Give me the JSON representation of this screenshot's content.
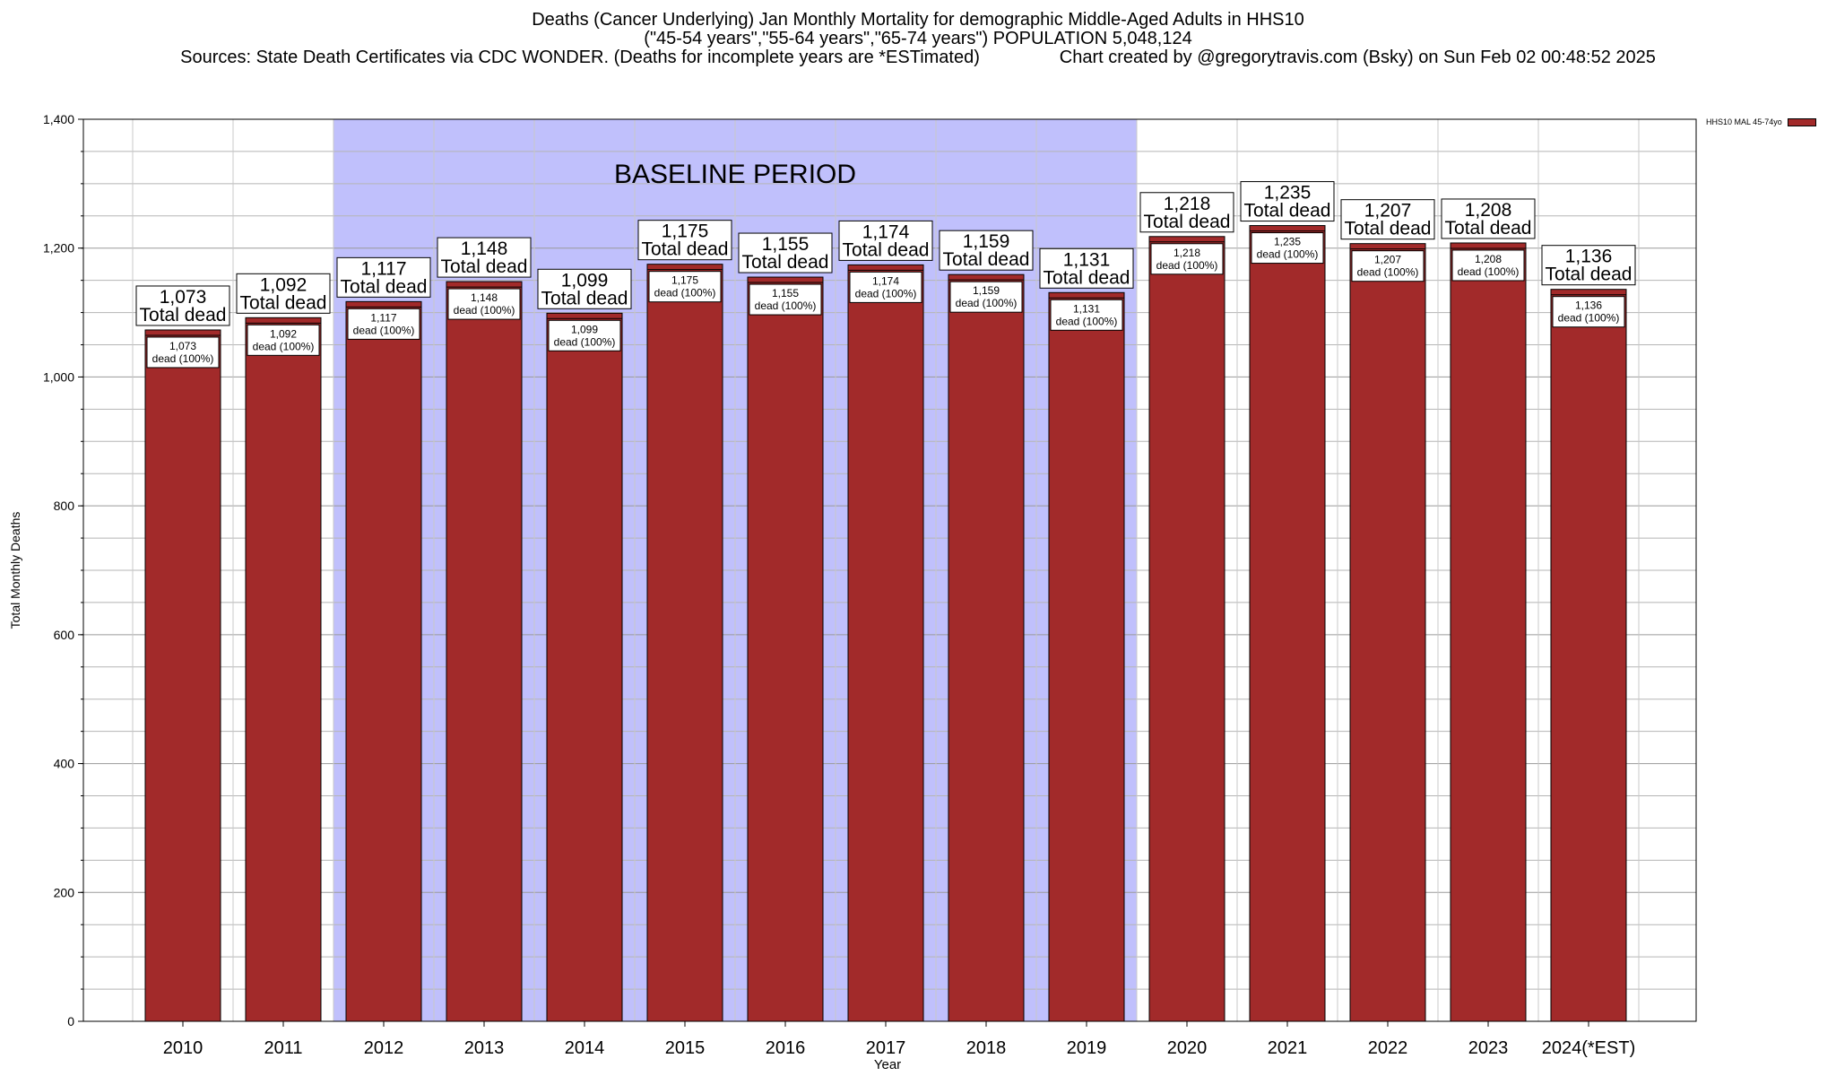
{
  "header": {
    "line1": "Deaths (Cancer Underlying) Jan Monthly Mortality for demographic Middle-Aged Adults in HHS10",
    "line2": "(\"45-54 years\",\"55-64 years\",\"65-74 years\") POPULATION 5,048,124",
    "line3": "Sources: State Death Certificates via CDC WONDER. (Deaths for incomplete years are *ESTimated)                Chart created by @gregorytravis.com (Bsky) on Sun Feb 02 00:48:52 2025"
  },
  "legend": {
    "label": "HHS10 MAL 45-74yo",
    "color": "#a22a2a"
  },
  "chart_data": {
    "type": "bar",
    "xlabel": "Year",
    "ylabel": "Total Monthly Deaths",
    "ylim": [
      0,
      1400
    ],
    "yticks": [
      0,
      200,
      400,
      600,
      800,
      1000,
      1200,
      1400
    ],
    "ytick_labels": [
      "0",
      "200",
      "400",
      "600",
      "800",
      "1,000",
      "1,200",
      "1,400"
    ],
    "grid": true,
    "legend_position": "top-right",
    "categories": [
      "2010",
      "2011",
      "2012",
      "2013",
      "2014",
      "2015",
      "2016",
      "2017",
      "2018",
      "2019",
      "2020",
      "2021",
      "2022",
      "2023",
      "2024(*EST)"
    ],
    "values": [
      1073,
      1092,
      1117,
      1148,
      1099,
      1175,
      1155,
      1174,
      1159,
      1131,
      1218,
      1235,
      1207,
      1208,
      1136
    ],
    "value_labels": [
      "1,073",
      "1,092",
      "1,117",
      "1,148",
      "1,099",
      "1,175",
      "1,155",
      "1,174",
      "1,159",
      "1,131",
      "1,218",
      "1,235",
      "1,207",
      "1,208",
      "1,136"
    ],
    "total_label_suffix": "Total dead",
    "inner_label_suffix": "dead (100%)",
    "bar_color": "#a22a2a",
    "baseline": {
      "label": "BASELINE PERIOD",
      "start_category": "2012",
      "end_category": "2019",
      "color": "#c0c0fc"
    }
  }
}
